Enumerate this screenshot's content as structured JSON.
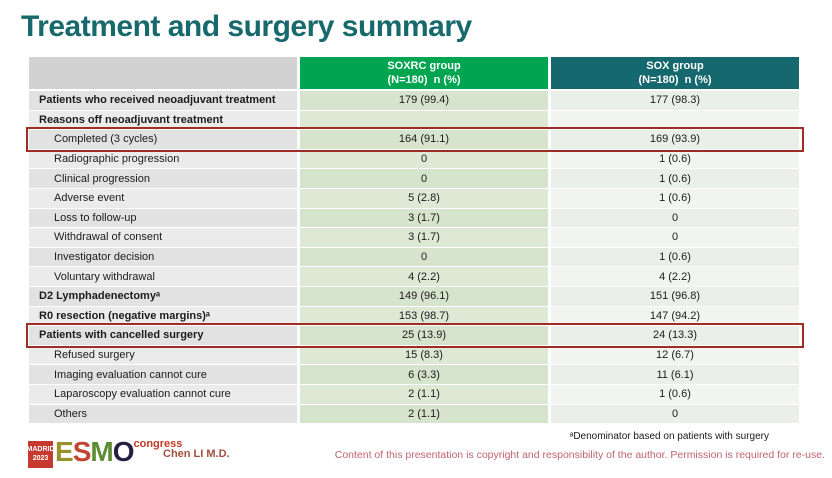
{
  "slide": {
    "title": "Treatment and surgery summary",
    "table": {
      "col_headers": [
        {
          "line1": "SOXRC group",
          "line2": "(N=180)  n (%)"
        },
        {
          "line1": "SOX group",
          "line2": "(N=180)  n (%)"
        }
      ],
      "rows": [
        {
          "label": "Patients who received neoadjuvant treatment",
          "soxrc": "179 (99.4)",
          "sox": "177 (98.3)",
          "bold": true,
          "indent": false,
          "highlighted": false
        },
        {
          "label": "Reasons off neoadjuvant treatment",
          "soxrc": "",
          "sox": "",
          "bold": true,
          "indent": false,
          "highlighted": false
        },
        {
          "label": "Completed (3 cycles)",
          "soxrc": "164 (91.1)",
          "sox": "169 (93.9)",
          "bold": false,
          "indent": true,
          "highlighted": true
        },
        {
          "label": "Radiographic progression",
          "soxrc": "0",
          "sox": "1 (0.6)",
          "bold": false,
          "indent": true,
          "highlighted": false
        },
        {
          "label": "Clinical progression",
          "soxrc": "0",
          "sox": "1 (0.6)",
          "bold": false,
          "indent": true,
          "highlighted": false
        },
        {
          "label": "Adverse event",
          "soxrc": "5 (2.8)",
          "sox": "1 (0.6)",
          "bold": false,
          "indent": true,
          "highlighted": false
        },
        {
          "label": "Loss to follow-up",
          "soxrc": "3 (1.7)",
          "sox": "0",
          "bold": false,
          "indent": true,
          "highlighted": false
        },
        {
          "label": "Withdrawal of consent",
          "soxrc": "3 (1.7)",
          "sox": "0",
          "bold": false,
          "indent": true,
          "highlighted": false
        },
        {
          "label": "Investigator decision",
          "soxrc": "0",
          "sox": "1 (0.6)",
          "bold": false,
          "indent": true,
          "highlighted": false
        },
        {
          "label": "Voluntary withdrawal",
          "soxrc": "4 (2.2)",
          "sox": "4 (2.2)",
          "bold": false,
          "indent": true,
          "highlighted": false
        },
        {
          "label": "D2 Lymphadenectomyᵃ",
          "soxrc": "149 (96.1)",
          "sox": "151 (96.8)",
          "bold": true,
          "indent": false,
          "highlighted": false
        },
        {
          "label": "R0 resection (negative margins)ᵃ",
          "soxrc": "153 (98.7)",
          "sox": "147 (94.2)",
          "bold": true,
          "indent": false,
          "highlighted": false
        },
        {
          "label": "Patients with cancelled surgery",
          "soxrc": "25 (13.9)",
          "sox": "24 (13.3)",
          "bold": true,
          "indent": false,
          "highlighted": true
        },
        {
          "label": "Refused surgery",
          "soxrc": "15 (8.3)",
          "sox": "12 (6.7)",
          "bold": false,
          "indent": true,
          "highlighted": false
        },
        {
          "label": "Imaging evaluation cannot cure",
          "soxrc": "6 (3.3)",
          "sox": "11 (6.1)",
          "bold": false,
          "indent": true,
          "highlighted": false
        },
        {
          "label": "Laparoscopy evaluation cannot cure",
          "soxrc": "2 (1.1)",
          "sox": "1 (0.6)",
          "bold": false,
          "indent": true,
          "highlighted": false
        },
        {
          "label": "Others",
          "soxrc": "2 (1.1)",
          "sox": "0",
          "bold": false,
          "indent": true,
          "highlighted": false
        }
      ]
    },
    "footer": {
      "logo": {
        "madrid_line1": "MADRID",
        "madrid_line2": "2023",
        "letters": [
          {
            "ch": "E",
            "color": "#97922c"
          },
          {
            "ch": "S",
            "color": "#c2452f"
          },
          {
            "ch": "M",
            "color": "#5e8c33"
          },
          {
            "ch": "O",
            "color": "#232340"
          }
        ],
        "congress": "congress"
      },
      "presenter": "Chen LI M.D.",
      "footnote": "ᵃDenominator based on patients with surgery",
      "copyright": "Content of this presentation is copyright and responsibility of the author. Permission is required for re-use."
    },
    "colors": {
      "title_teal": "#17696b",
      "soxrc_header_green": "#00a551",
      "sox_header_teal": "#15696e",
      "label_header_gray": "#d2d2d2",
      "soxrc_cell_green": "#d6e3cd",
      "sox_cell_gray": "#ebefe9",
      "highlight_red": "#9e2d26",
      "madrid_badge_red": "#c5392e",
      "presenter_red": "#a34f3e",
      "copyright_rose": "#c0636e"
    }
  }
}
